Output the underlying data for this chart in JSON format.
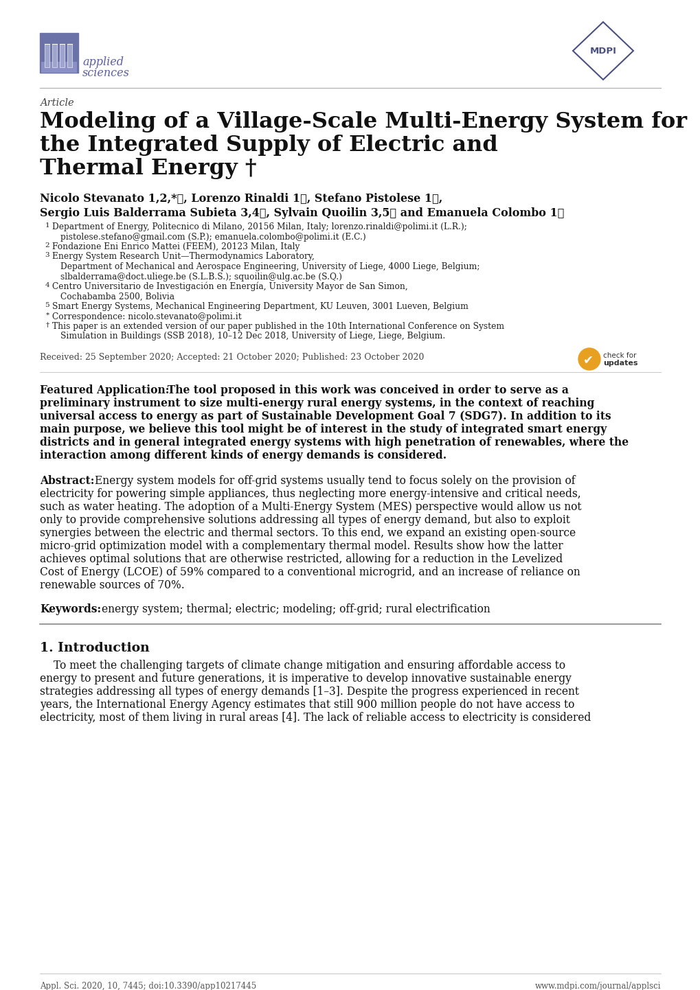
{
  "bg_color": "#ffffff",
  "title_line1": "Modeling of a Village-Scale Multi-Energy System for",
  "title_line2": "the Integrated Supply of Electric and",
  "title_line3": "Thermal Energy †",
  "article_label": "Article",
  "authors_line1": "Nicolo Stevanato 1,2,*ⓘ, Lorenzo Rinaldi 1ⓘ, Stefano Pistolese 1ⓘ,",
  "authors_line2": "Sergio Luis Balderrama Subieta 3,4ⓘ, Sylvain Quoilin 3,5ⓘ and Emanuela Colombo 1ⓘ",
  "affiliations": [
    [
      "1",
      "Department of Energy, Politecnico di Milano, 20156 Milan, Italy; lorenzo.rinaldi@polimi.it (L.R.);"
    ],
    [
      "",
      "pistolese.stefano@gmail.com (S.P.); emanuela.colombo@polimi.it (E.C.)"
    ],
    [
      "2",
      "Fondazione Eni Enrico Mattei (FEEM), 20123 Milan, Italy"
    ],
    [
      "3",
      "Energy System Research Unit—Thermodynamics Laboratory,"
    ],
    [
      "",
      "Department of Mechanical and Aerospace Engineering, University of Liege, 4000 Liege, Belgium;"
    ],
    [
      "",
      "slbalderrama@doct.uliege.be (S.L.B.S.); squoilin@ulg.ac.be (S.Q.)"
    ],
    [
      "4",
      "Centro Universitario de Investigación en Energía, University Mayor de San Simon,"
    ],
    [
      "",
      "Cochabamba 2500, Bolivia"
    ],
    [
      "5",
      "Smart Energy Systems, Mechanical Engineering Department, KU Leuven, 3001 Lueven, Belgium"
    ],
    [
      "*",
      "Correspondence: nicolo.stevanato@polimi.it"
    ],
    [
      "†",
      "This paper is an extended version of our paper published in the 10th International Conference on System"
    ],
    [
      "",
      "Simulation in Buildings (SSB 2018), 10–12 Dec 2018, University of Liege, Liege, Belgium."
    ]
  ],
  "received": "Received: 25 September 2020; Accepted: 21 October 2020; Published: 23 October 2020",
  "featured_lines": [
    "Featured Application:  The tool proposed in this work was conceived in order to serve as a",
    "preliminary instrument to size multi-energy rural energy systems, in the context of reaching",
    "universal access to energy as part of Sustainable Development Goal 7 (SDG7). In addition to its",
    "main purpose, we believe this tool might be of interest in the study of integrated smart energy",
    "districts and in general integrated energy systems with high penetration of renewables, where the",
    "interaction among different kinds of energy demands is considered."
  ],
  "abstract_lines": [
    "Energy system models for off-grid systems usually tend to focus solely on the provision of",
    "electricity for powering simple appliances, thus neglecting more energy-intensive and critical needs,",
    "such as water heating. The adoption of a Multi-Energy System (MES) perspective would allow us not",
    "only to provide comprehensive solutions addressing all types of energy demand, but also to exploit",
    "synergies between the electric and thermal sectors. To this end, we expand an existing open-source",
    "micro-grid optimization model with a complementary thermal model. Results show how the latter",
    "achieves optimal solutions that are otherwise restricted, allowing for a reduction in the Levelized",
    "Cost of Energy (LCOE) of 59% compared to a conventional microgrid, and an increase of reliance on",
    "renewable sources of 70%."
  ],
  "keywords_text": "energy system; thermal; electric; modeling; off-grid; rural electrification",
  "section_title": "1. Introduction",
  "intro_lines": [
    "To meet the challenging targets of climate change mitigation and ensuring affordable access to",
    "energy to present and future generations, it is imperative to develop innovative sustainable energy",
    "strategies addressing all types of energy demands [1–3]. Despite the progress experienced in recent",
    "years, the International Energy Agency estimates that still 900 million people do not have access to",
    "electricity, most of them living in rural areas [4]. The lack of reliable access to electricity is considered"
  ],
  "footer_left": "Appl. Sci. 2020, 10, 7445; doi:10.3390/app10217445",
  "footer_right": "www.mdpi.com/journal/applsci",
  "logo_color": "#6b72a8",
  "logo_text_color": "#5a5f9e",
  "mdpi_color": "#4a5080",
  "text_color": "#111111",
  "aff_color": "#222222",
  "sep_color": "#aaaaaa",
  "footer_color": "#555555"
}
